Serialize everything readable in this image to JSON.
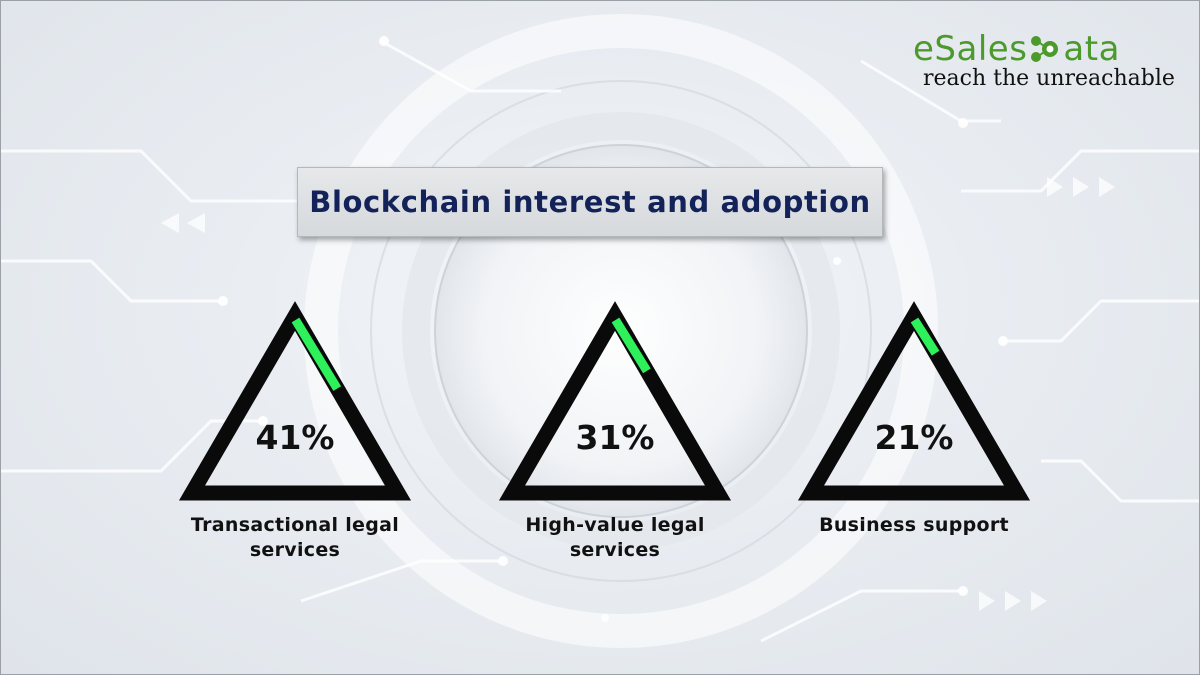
{
  "brand": {
    "logo_text_pre": "eSales",
    "logo_text_post": "ata",
    "tagline": "reach the unreachable",
    "logo_color": "#4b9a2b"
  },
  "chart_data": {
    "type": "bar",
    "title": "Blockchain interest and adoption",
    "categories": [
      "Transactional legal services",
      "High-value legal services",
      "Business support"
    ],
    "category_lines": [
      [
        "Transactional legal",
        "services"
      ],
      [
        "High-value legal",
        "services"
      ],
      [
        "Business support"
      ]
    ],
    "values": [
      41,
      31,
      21
    ],
    "value_labels": [
      "41%",
      "31%",
      "21%"
    ],
    "ylim": [
      0,
      100
    ],
    "colors": {
      "fill": "#2ef05a",
      "track": "#0a0a0a",
      "title": "#13235a"
    }
  }
}
